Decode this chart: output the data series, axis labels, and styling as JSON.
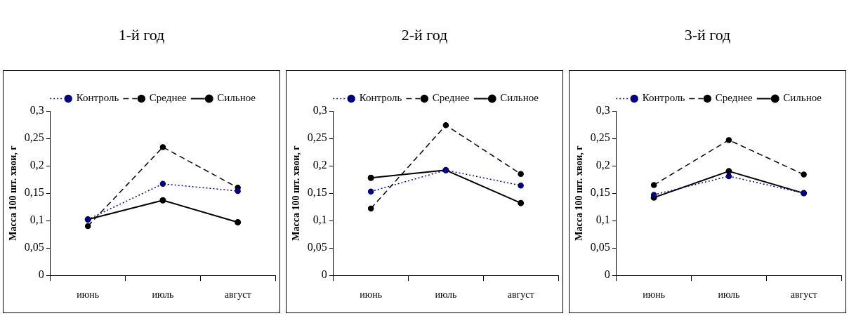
{
  "chart_data": [
    {
      "type": "line",
      "title": "1-й год",
      "ylabel": "Масса 100 шт. хвои, г",
      "categories": [
        "июнь",
        "июль",
        "август"
      ],
      "ylim": [
        0,
        0.3
      ],
      "yticks": [
        {
          "value": 0,
          "label": "0"
        },
        {
          "value": 0.05,
          "label": "0,05"
        },
        {
          "value": 0.1,
          "label": "0,1"
        },
        {
          "value": 0.15,
          "label": "0,15"
        },
        {
          "value": 0.2,
          "label": "0,2"
        },
        {
          "value": 0.25,
          "label": "0,25"
        },
        {
          "value": 0.3,
          "label": "0,3"
        }
      ],
      "grid": false,
      "legend": "top right",
      "marker": "circle",
      "series": [
        {
          "name": "Контроль",
          "color": "#000080",
          "line_style": "dotted",
          "values": [
            0.102,
            0.167,
            0.154
          ]
        },
        {
          "name": "Среднее",
          "color": "#000000",
          "line_style": "dashed",
          "values": [
            0.09,
            0.234,
            0.16
          ]
        },
        {
          "name": "Сильное",
          "color": "#000000",
          "line_style": "solid",
          "values": [
            0.102,
            0.137,
            0.097
          ]
        }
      ]
    },
    {
      "type": "line",
      "title": "2-й год",
      "ylabel": "Масса 100 шт. хвои, г",
      "categories": [
        "июнь",
        "июль",
        "август"
      ],
      "ylim": [
        0,
        0.3
      ],
      "yticks": [
        {
          "value": 0,
          "label": "0"
        },
        {
          "value": 0.05,
          "label": "0,05"
        },
        {
          "value": 0.1,
          "label": "0,1"
        },
        {
          "value": 0.15,
          "label": "0,15"
        },
        {
          "value": 0.2,
          "label": "0,2"
        },
        {
          "value": 0.25,
          "label": "0,25"
        },
        {
          "value": 0.3,
          "label": "0,3"
        }
      ],
      "grid": false,
      "legend": "top right",
      "marker": "circle",
      "series": [
        {
          "name": "Контроль",
          "color": "#000080",
          "line_style": "dotted",
          "values": [
            0.153,
            0.192,
            0.164
          ]
        },
        {
          "name": "Среднее",
          "color": "#000000",
          "line_style": "dashed",
          "values": [
            0.122,
            0.274,
            0.185
          ]
        },
        {
          "name": "Сильное",
          "color": "#000000",
          "line_style": "solid",
          "values": [
            0.178,
            0.192,
            0.132
          ]
        }
      ]
    },
    {
      "type": "line",
      "title": "3-й год",
      "ylabel": "Масса 100 шт. хвои, г",
      "categories": [
        "июнь",
        "июль",
        "август"
      ],
      "ylim": [
        0,
        0.3
      ],
      "yticks": [
        {
          "value": 0,
          "label": "0"
        },
        {
          "value": 0.05,
          "label": "0,05"
        },
        {
          "value": 0.1,
          "label": "0,1"
        },
        {
          "value": 0.15,
          "label": "0,15"
        },
        {
          "value": 0.2,
          "label": "0,2"
        },
        {
          "value": 0.25,
          "label": "0,25"
        },
        {
          "value": 0.3,
          "label": "0,3"
        }
      ],
      "grid": false,
      "legend": "top right",
      "marker": "circle",
      "series": [
        {
          "name": "Контроль",
          "color": "#000080",
          "line_style": "dotted",
          "values": [
            0.147,
            0.181,
            0.15
          ]
        },
        {
          "name": "Среднее",
          "color": "#000000",
          "line_style": "dashed",
          "values": [
            0.165,
            0.247,
            0.184
          ]
        },
        {
          "name": "Сильное",
          "color": "#000000",
          "line_style": "solid",
          "values": [
            0.142,
            0.19,
            0.15
          ]
        }
      ]
    }
  ]
}
